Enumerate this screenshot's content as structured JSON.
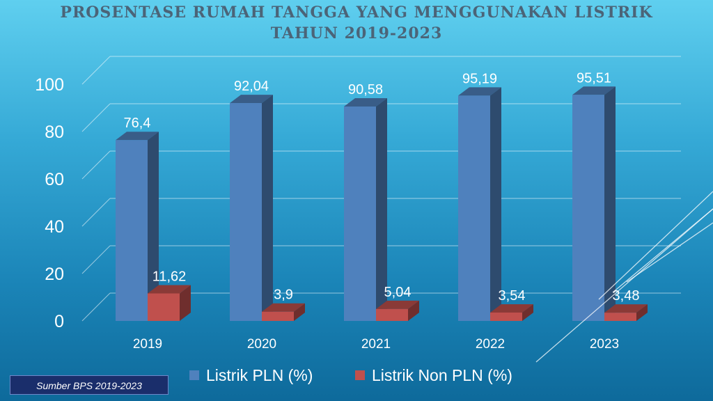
{
  "title_line1": "PROSENTASE RUMAH TANGGA YANG MENGGUNAKAN LISTRIK",
  "title_line2": "TAHUN 2019-2023",
  "source": "Sumber BPS 2019-2023",
  "colors": {
    "pln": "#4f81bd",
    "non_pln": "#c0504d",
    "title": "#4b6478"
  },
  "chart_data": {
    "type": "bar",
    "title": "PROSENTASE RUMAH TANGGA YANG MENGGUNAKAN LISTRIK TAHUN 2019-2023",
    "categories": [
      "2019",
      "2020",
      "2021",
      "2022",
      "2023"
    ],
    "series": [
      {
        "name": "Listrik PLN (%)",
        "values": [
          76.4,
          92.04,
          90.58,
          95.19,
          95.51
        ],
        "labels": [
          "76,4",
          "92,04",
          "90,58",
          "95,19",
          "95,51"
        ]
      },
      {
        "name": "Listrik Non PLN (%)",
        "values": [
          11.62,
          3.9,
          5.04,
          3.54,
          3.48
        ],
        "labels": [
          "11,62",
          "3,9",
          "5,04",
          "3,54",
          "3,48"
        ]
      }
    ],
    "yticks": [
      "0",
      "20",
      "40",
      "60",
      "80",
      "100"
    ],
    "ylim": [
      0,
      100
    ],
    "grid": true,
    "legend": "bottom",
    "style": "3d-clustered-column"
  }
}
